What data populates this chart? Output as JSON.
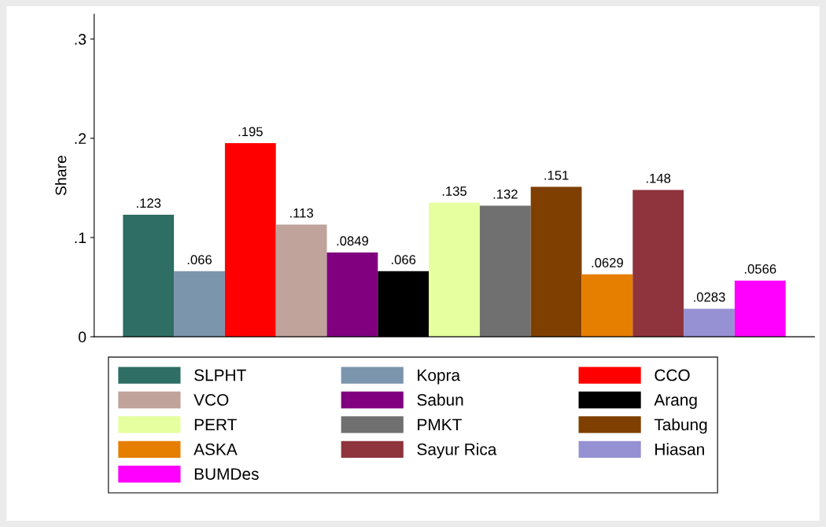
{
  "chart_data": {
    "type": "bar",
    "ylabel": "Share",
    "categories": [
      null
    ],
    "ylim": [
      0,
      0.325
    ],
    "yticks": [
      0,
      {
        "value": 0.1,
        "label": ".1"
      },
      {
        "value": 0.2,
        "label": ".2"
      },
      {
        "value": 0.3,
        "label": ".3"
      }
    ],
    "grid": false,
    "legend": "bottom",
    "series": [
      {
        "name": "SLPHT",
        "color": "#2e6e64",
        "values": [
          0.123
        ],
        "value_labels": [
          ".123"
        ]
      },
      {
        "name": "Kopra",
        "color": "#7b95ad",
        "values": [
          0.066
        ],
        "value_labels": [
          ".066"
        ]
      },
      {
        "name": "CCO",
        "color": "#ff0000",
        "values": [
          0.195
        ],
        "value_labels": [
          ".195"
        ]
      },
      {
        "name": "VCO",
        "color": "#c0a39b",
        "values": [
          0.113
        ],
        "value_labels": [
          ".113"
        ]
      },
      {
        "name": "Sabun",
        "color": "#800080",
        "values": [
          0.0849
        ],
        "value_labels": [
          ".0849"
        ]
      },
      {
        "name": "Arang",
        "color": "#000000",
        "values": [
          0.066
        ],
        "value_labels": [
          ".066"
        ]
      },
      {
        "name": "PERT",
        "color": "#e6ff9f",
        "values": [
          0.135
        ],
        "value_labels": [
          ".135"
        ]
      },
      {
        "name": "PMKT",
        "color": "#707070",
        "values": [
          0.132
        ],
        "value_labels": [
          ".132"
        ]
      },
      {
        "name": "Tabung",
        "color": "#7f3f00",
        "values": [
          0.151
        ],
        "value_labels": [
          ".151"
        ]
      },
      {
        "name": "ASKA",
        "color": "#e67e00",
        "values": [
          0.0629
        ],
        "value_labels": [
          ".0629"
        ]
      },
      {
        "name": "Sayur Rica",
        "color": "#8f333c",
        "values": [
          0.148
        ],
        "value_labels": [
          ".148"
        ]
      },
      {
        "name": "Hiasan",
        "color": "#9691d2",
        "values": [
          0.0283
        ],
        "value_labels": [
          ".0283"
        ]
      },
      {
        "name": "BUMDes",
        "color": "#ff00ff",
        "values": [
          0.0566
        ],
        "value_labels": [
          ".0566"
        ]
      }
    ]
  }
}
